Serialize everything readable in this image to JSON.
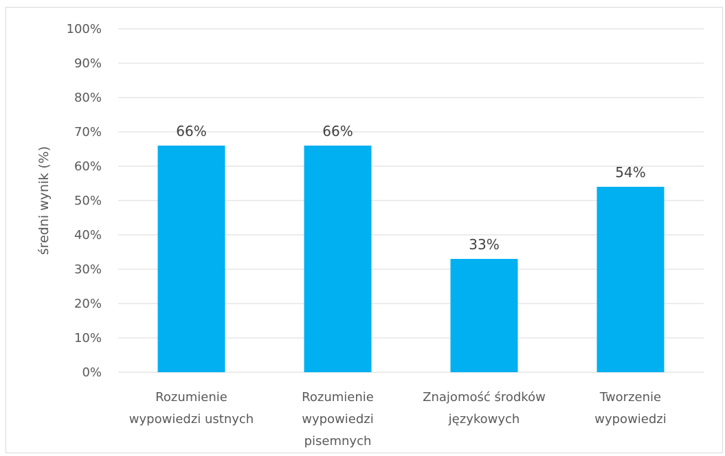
{
  "chart_data": {
    "type": "bar",
    "categories": [
      [
        "Rozumienie",
        "wypowiedzi ustnych"
      ],
      [
        "Rozumienie",
        "wypowiedzi",
        "pisemnych"
      ],
      [
        "Znajomość środków",
        "językowych"
      ],
      [
        "Tworzenie",
        "wypowiedzi"
      ]
    ],
    "values": [
      66,
      66,
      33,
      54
    ],
    "data_labels": [
      "66%",
      "66%",
      "33%",
      "54%"
    ],
    "ylabel": "średni wynik (%)",
    "ylim": [
      0,
      100
    ],
    "yticks": [
      "0%",
      "10%",
      "20%",
      "30%",
      "40%",
      "50%",
      "60%",
      "70%",
      "80%",
      "90%",
      "100%"
    ],
    "grid": true,
    "bar_color": "#00B0F0",
    "grid_color": "#d9d9d9"
  }
}
